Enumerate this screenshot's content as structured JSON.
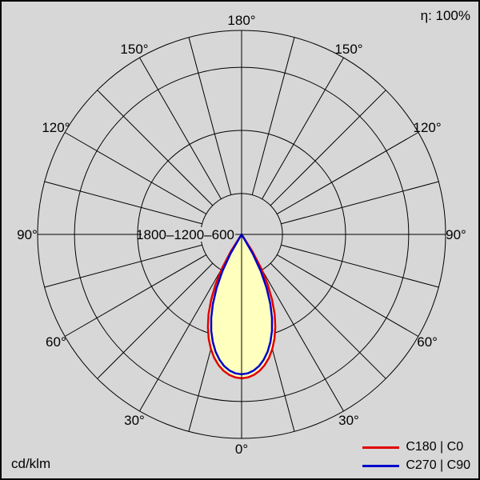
{
  "header": {
    "efficiency": "η: 100%"
  },
  "footer": {
    "unit": "cd/klm"
  },
  "legend": {
    "items": [
      {
        "label": "C180 | C0",
        "color": "#e10000"
      },
      {
        "label": "C270 | C90",
        "color": "#0000cd"
      }
    ]
  },
  "chart_data": {
    "type": "polar",
    "subtype": "luminous-intensity-distribution",
    "title": "",
    "unit": "cd/klm",
    "efficiency_percent": 100,
    "background_color": "#d7d7d7",
    "grid_color": "#000000",
    "fill_color": "#ffffbe",
    "angle_tick_step_deg": 15,
    "angle_labels_deg": [
      0,
      30,
      60,
      90,
      120,
      150,
      180
    ],
    "angle_label_suffix": "°",
    "radial_scale": {
      "scale_type": "logarithmic",
      "circle_values": [
        300,
        600,
        1200,
        1800
      ],
      "labeled_values": [
        1800,
        1200,
        600
      ],
      "axis_label_text": "1800–1200–600",
      "max_value": 1800
    },
    "series": [
      {
        "name": "C180 | C0",
        "color": "#e10000",
        "gamma_deg": [
          0,
          2.5,
          5,
          7.5,
          10,
          12.5,
          15,
          17.5,
          20,
          22.5,
          25,
          27.5,
          30,
          32.5,
          35,
          37.5,
          40,
          42.5,
          45
        ],
        "values_cd_per_klm": [
          930,
          923,
          901,
          868,
          823,
          768,
          704,
          637,
          565,
          494,
          423,
          356,
          294,
          238,
          189,
          146,
          110,
          81,
          58
        ]
      },
      {
        "name": "C270 | C90",
        "color": "#0000cd",
        "gamma_deg": [
          0,
          2.5,
          5,
          7.5,
          10,
          12.5,
          15,
          17.5,
          20,
          22.5,
          25,
          27.5,
          30,
          32.5,
          35,
          37.5,
          40,
          42.5,
          45
        ],
        "values_cd_per_klm": [
          890,
          882,
          860,
          824,
          775,
          717,
          651,
          581,
          508,
          437,
          367,
          302,
          244,
          192,
          148,
          111,
          81,
          57,
          39
        ]
      }
    ]
  }
}
